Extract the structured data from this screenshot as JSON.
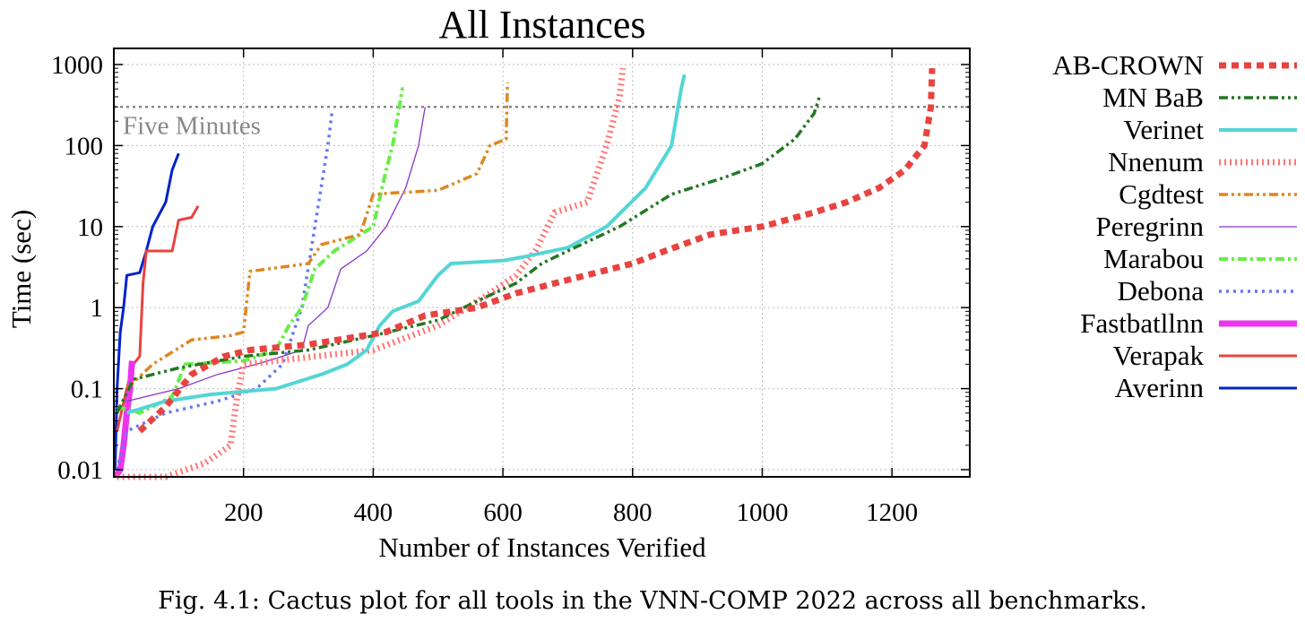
{
  "chart_data": {
    "type": "line",
    "title": "All Instances",
    "xlabel": "Number of Instances Verified",
    "ylabel": "Time (sec)",
    "x_scale": "linear",
    "y_scale": "log",
    "xlim": [
      0,
      1320
    ],
    "ylim": [
      0.01,
      1000
    ],
    "x_ticks": [
      200,
      400,
      600,
      800,
      1000,
      1200
    ],
    "x_tick_labels": [
      "200",
      "400",
      "600",
      "800",
      "1000",
      "1200"
    ],
    "y_ticks": [
      0.01,
      0.1,
      1,
      10,
      100,
      1000
    ],
    "y_tick_labels": [
      "0.01",
      "0.1",
      "1",
      "10",
      "100",
      "1000"
    ],
    "grid": true,
    "legend_position": "right, outside plot",
    "reference_line": {
      "label": "Five Minutes",
      "y": 300,
      "color": "#888888"
    },
    "series": [
      {
        "name": "AB-CROWN",
        "color": "#e8433f",
        "style": "dotted-thick",
        "points": [
          [
            40,
            0.03
          ],
          [
            80,
            0.06
          ],
          [
            120,
            0.15
          ],
          [
            170,
            0.25
          ],
          [
            210,
            0.3
          ],
          [
            300,
            0.35
          ],
          [
            420,
            0.5
          ],
          [
            480,
            0.8
          ],
          [
            560,
            1.0
          ],
          [
            620,
            1.5
          ],
          [
            680,
            2.0
          ],
          [
            800,
            3.5
          ],
          [
            850,
            5
          ],
          [
            920,
            8
          ],
          [
            1000,
            10
          ],
          [
            1080,
            15
          ],
          [
            1130,
            20
          ],
          [
            1180,
            30
          ],
          [
            1220,
            50
          ],
          [
            1250,
            100
          ],
          [
            1260,
            300
          ],
          [
            1262,
            900
          ]
        ]
      },
      {
        "name": "MN BaB",
        "color": "#227722",
        "style": "dash-dot-dot",
        "points": [
          [
            5,
            0.05
          ],
          [
            30,
            0.13
          ],
          [
            100,
            0.18
          ],
          [
            200,
            0.25
          ],
          [
            300,
            0.3
          ],
          [
            400,
            0.45
          ],
          [
            500,
            0.7
          ],
          [
            560,
            1.2
          ],
          [
            620,
            2.0
          ],
          [
            660,
            3.5
          ],
          [
            700,
            5
          ],
          [
            780,
            10
          ],
          [
            860,
            25
          ],
          [
            940,
            40
          ],
          [
            1000,
            60
          ],
          [
            1050,
            120
          ],
          [
            1080,
            250
          ],
          [
            1088,
            400
          ]
        ]
      },
      {
        "name": "Verinet",
        "color": "#55d5d5",
        "style": "solid-thick",
        "points": [
          [
            20,
            0.05
          ],
          [
            80,
            0.07
          ],
          [
            150,
            0.085
          ],
          [
            250,
            0.1
          ],
          [
            320,
            0.15
          ],
          [
            360,
            0.2
          ],
          [
            390,
            0.3
          ],
          [
            410,
            0.6
          ],
          [
            430,
            0.9
          ],
          [
            470,
            1.2
          ],
          [
            500,
            2.5
          ],
          [
            520,
            3.5
          ],
          [
            600,
            3.8
          ],
          [
            630,
            4.2
          ],
          [
            700,
            5.5
          ],
          [
            760,
            10
          ],
          [
            820,
            30
          ],
          [
            860,
            100
          ],
          [
            875,
            500
          ],
          [
            880,
            750
          ]
        ]
      },
      {
        "name": "Nnenum",
        "color": "#ff7777",
        "style": "hatched",
        "points": [
          [
            5,
            0.005
          ],
          [
            80,
            0.008
          ],
          [
            140,
            0.012
          ],
          [
            180,
            0.02
          ],
          [
            190,
            0.08
          ],
          [
            200,
            0.2
          ],
          [
            250,
            0.22
          ],
          [
            400,
            0.3
          ],
          [
            500,
            0.6
          ],
          [
            580,
            1.5
          ],
          [
            620,
            2.5
          ],
          [
            650,
            5
          ],
          [
            680,
            15
          ],
          [
            730,
            20
          ],
          [
            760,
            100
          ],
          [
            780,
            400
          ],
          [
            785,
            900
          ]
        ]
      },
      {
        "name": "Cgdtest",
        "color": "#dd8822",
        "style": "dash-dot-dot",
        "points": [
          [
            20,
            0.1
          ],
          [
            60,
            0.2
          ],
          [
            120,
            0.4
          ],
          [
            180,
            0.45
          ],
          [
            200,
            0.5
          ],
          [
            210,
            2.8
          ],
          [
            300,
            3.5
          ],
          [
            320,
            6
          ],
          [
            380,
            8
          ],
          [
            400,
            25
          ],
          [
            430,
            26
          ],
          [
            500,
            28
          ],
          [
            560,
            45
          ],
          [
            580,
            100
          ],
          [
            605,
            120
          ],
          [
            607,
            600
          ]
        ]
      },
      {
        "name": "Peregrinn",
        "color": "#8833cc",
        "style": "solid-thin",
        "points": [
          [
            20,
            0.07
          ],
          [
            100,
            0.1
          ],
          [
            160,
            0.15
          ],
          [
            220,
            0.2
          ],
          [
            260,
            0.25
          ],
          [
            290,
            0.3
          ],
          [
            300,
            0.6
          ],
          [
            330,
            1
          ],
          [
            350,
            3
          ],
          [
            390,
            5
          ],
          [
            420,
            10
          ],
          [
            450,
            30
          ],
          [
            470,
            100
          ],
          [
            480,
            300
          ]
        ]
      },
      {
        "name": "Marabou",
        "color": "#66ee44",
        "style": "dash-dot",
        "points": [
          [
            5,
            0.06
          ],
          [
            40,
            0.05
          ],
          [
            90,
            0.08
          ],
          [
            110,
            0.2
          ],
          [
            200,
            0.22
          ],
          [
            250,
            0.3
          ],
          [
            270,
            0.6
          ],
          [
            290,
            1.0
          ],
          [
            310,
            3
          ],
          [
            340,
            5
          ],
          [
            400,
            10
          ],
          [
            420,
            50
          ],
          [
            430,
            100
          ],
          [
            445,
            500
          ],
          [
            447,
            500
          ]
        ]
      },
      {
        "name": "Debona",
        "color": "#6677ee",
        "style": "dotted",
        "points": [
          [
            5,
            0.01
          ],
          [
            20,
            0.03
          ],
          [
            80,
            0.05
          ],
          [
            160,
            0.07
          ],
          [
            220,
            0.1
          ],
          [
            260,
            0.2
          ],
          [
            290,
            1
          ],
          [
            310,
            10
          ],
          [
            330,
            100
          ],
          [
            337,
            280
          ]
        ]
      },
      {
        "name": "Fastbatllnn",
        "color": "#ee33ee",
        "style": "solid-bold",
        "points": [
          [
            2,
            0.005
          ],
          [
            10,
            0.01
          ],
          [
            15,
            0.02
          ],
          [
            20,
            0.05
          ],
          [
            25,
            0.1
          ],
          [
            28,
            0.22
          ]
        ]
      },
      {
        "name": "Verapak",
        "color": "#e8433f",
        "style": "solid",
        "points": [
          [
            5,
            0.03
          ],
          [
            20,
            0.1
          ],
          [
            30,
            0.2
          ],
          [
            40,
            0.25
          ],
          [
            45,
            2
          ],
          [
            50,
            5
          ],
          [
            90,
            5
          ],
          [
            100,
            12
          ],
          [
            120,
            13
          ],
          [
            130,
            18
          ]
        ]
      },
      {
        "name": "Averinn",
        "color": "#0022cc",
        "style": "solid",
        "points": [
          [
            2,
            0.01
          ],
          [
            5,
            0.1
          ],
          [
            10,
            0.5
          ],
          [
            15,
            1
          ],
          [
            20,
            2.5
          ],
          [
            40,
            2.7
          ],
          [
            50,
            5
          ],
          [
            60,
            10
          ],
          [
            80,
            20
          ],
          [
            90,
            50
          ],
          [
            100,
            80
          ]
        ]
      }
    ]
  },
  "caption": "Fig. 4.1: Cactus plot for all tools in the VNN-COMP 2022 across all benchmarks."
}
